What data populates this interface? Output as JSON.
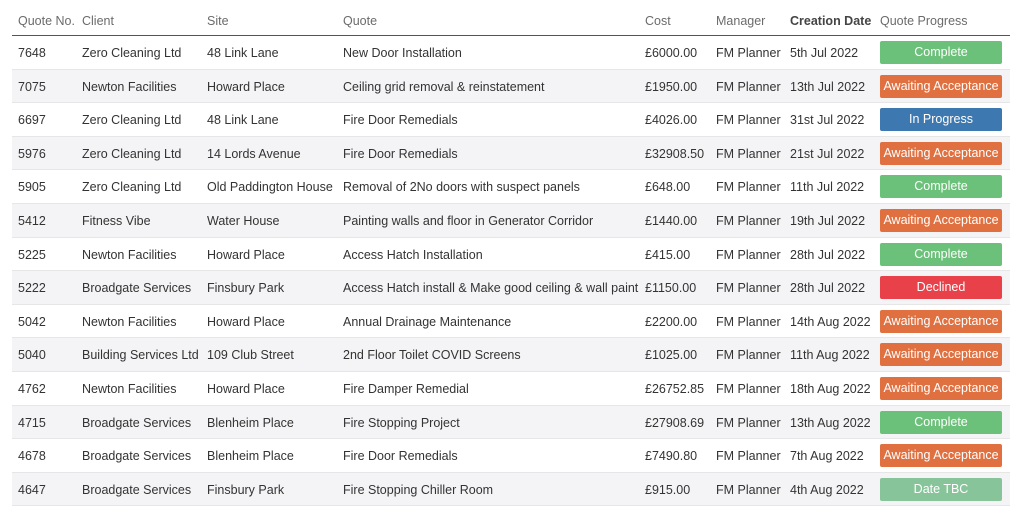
{
  "table": {
    "headers": [
      "Quote No.",
      "Client",
      "Site",
      "Quote",
      "Cost",
      "Manager",
      "Creation Date",
      "Quote Progress"
    ],
    "rows": [
      [
        "7648",
        "Zero Cleaning Ltd",
        "48 Link Lane",
        "New Door Installation",
        "£6000.00",
        "FM Planner",
        "5th Jul 2022",
        {
          "label": "Complete",
          "color": "#6cc17a"
        }
      ],
      [
        "7075",
        "Newton Facilities",
        "Howard Place",
        "Ceiling grid removal & reinstatement",
        "£1950.00",
        "FM Planner",
        "13th Jul 2022",
        {
          "label": "Awaiting Acceptance",
          "color": "#e0703f"
        }
      ],
      [
        "6697",
        "Zero Cleaning Ltd",
        "48 Link Lane",
        "Fire Door Remedials",
        "£4026.00",
        "FM Planner",
        "31st Jul 2022",
        {
          "label": "In Progress",
          "color": "#3d78b0"
        }
      ],
      [
        "5976",
        "Zero Cleaning Ltd",
        "14 Lords Avenue",
        "Fire Door Remedials",
        "£32908.50",
        "FM Planner",
        "21st Jul 2022",
        {
          "label": "Awaiting Acceptance",
          "color": "#e0703f"
        }
      ],
      [
        "5905",
        "Zero Cleaning Ltd",
        "Old Paddington House",
        "Removal of 2No doors with suspect panels",
        "£648.00",
        "FM Planner",
        "11th Jul 2022",
        {
          "label": "Complete",
          "color": "#6cc17a"
        }
      ],
      [
        "5412",
        "Fitness Vibe",
        "Water House",
        "Painting walls and floor in Generator Corridor",
        "£1440.00",
        "FM Planner",
        "19th Jul 2022",
        {
          "label": "Awaiting Acceptance",
          "color": "#e0703f"
        }
      ],
      [
        "5225",
        "Newton Facilities",
        "Howard Place",
        "Access Hatch Installation",
        "£415.00",
        "FM Planner",
        "28th Jul 2022",
        {
          "label": "Complete",
          "color": "#6cc17a"
        }
      ],
      [
        "5222",
        "Broadgate Services",
        "Finsbury Park",
        "Access Hatch install & Make good ceiling & wall paint",
        "£1150.00",
        "FM Planner",
        "28th Jul 2022",
        {
          "label": "Declined",
          "color": "#e8414a"
        }
      ],
      [
        "5042",
        "Newton Facilities",
        "Howard Place",
        "Annual Drainage Maintenance",
        "£2200.00",
        "FM Planner",
        "14th Aug 2022",
        {
          "label": "Awaiting Acceptance",
          "color": "#e0703f"
        }
      ],
      [
        "5040",
        "Building Services Ltd",
        "109 Club Street",
        "2nd Floor Toilet COVID Screens",
        "£1025.00",
        "FM Planner",
        "11th Aug 2022",
        {
          "label": "Awaiting Acceptance",
          "color": "#e0703f"
        }
      ],
      [
        "4762",
        "Newton Facilities",
        "Howard Place",
        "Fire Damper Remedial",
        "£26752.85",
        "FM Planner",
        "18th Aug 2022",
        {
          "label": "Awaiting Acceptance",
          "color": "#e0703f"
        }
      ],
      [
        "4715",
        "Broadgate Services",
        "Blenheim Place",
        "Fire Stopping Project",
        "£27908.69",
        "FM Planner",
        "13th Aug 2022",
        {
          "label": "Complete",
          "color": "#6cc17a"
        }
      ],
      [
        "4678",
        "Broadgate Services",
        "Blenheim Place",
        "Fire Door Remedials",
        "£7490.80",
        "FM Planner",
        "7th Aug 2022",
        {
          "label": "Awaiting Acceptance",
          "color": "#e0703f"
        }
      ],
      [
        "4647",
        "Broadgate Services",
        "Finsbury Park",
        "Fire Stopping Chiller Room",
        "£915.00",
        "FM Planner",
        "4th Aug 2022",
        {
          "label": "Date TBC",
          "color": "#88c499"
        }
      ]
    ]
  }
}
